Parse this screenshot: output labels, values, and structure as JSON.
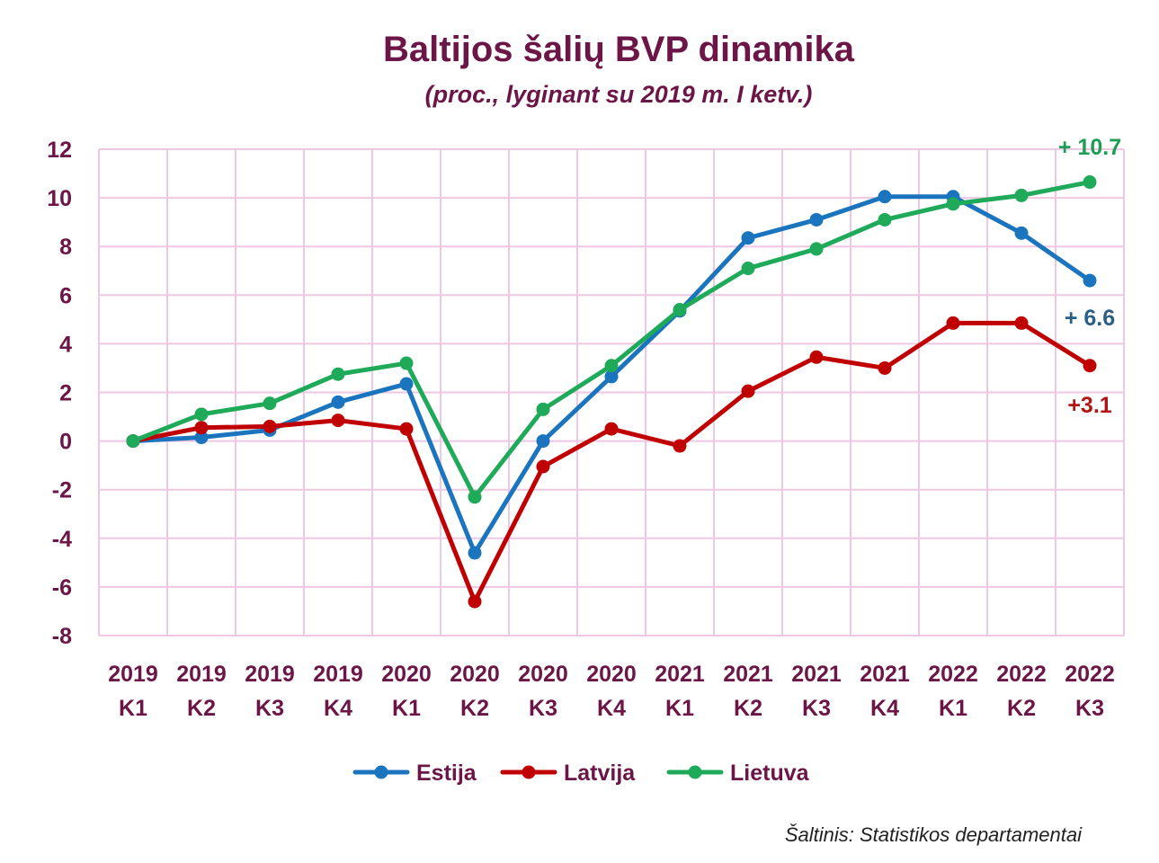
{
  "colors": {
    "text": "#6b1647",
    "grid": "#eec7e3",
    "source": "#222222"
  },
  "chart_data": {
    "type": "line",
    "title": "Baltijos šalių BVP dinamika",
    "subtitle": "(proc., lyginant su 2019 m. I ketv.)",
    "categories": [
      {
        "year": "2019",
        "q": "K1"
      },
      {
        "year": "2019",
        "q": "K2"
      },
      {
        "year": "2019",
        "q": "K3"
      },
      {
        "year": "2019",
        "q": "K4"
      },
      {
        "year": "2020",
        "q": "K1"
      },
      {
        "year": "2020",
        "q": "K2"
      },
      {
        "year": "2020",
        "q": "K3"
      },
      {
        "year": "2020",
        "q": "K4"
      },
      {
        "year": "2021",
        "q": "K1"
      },
      {
        "year": "2021",
        "q": "K2"
      },
      {
        "year": "2021",
        "q": "K3"
      },
      {
        "year": "2021",
        "q": "K4"
      },
      {
        "year": "2022",
        "q": "K1"
      },
      {
        "year": "2022",
        "q": "K2"
      },
      {
        "year": "2022",
        "q": "K3"
      }
    ],
    "ylim": [
      -8,
      12
    ],
    "yticks": [
      -8,
      -6,
      -4,
      -2,
      0,
      2,
      4,
      6,
      8,
      10,
      12
    ],
    "grid": true,
    "legend_position": "bottom",
    "series": [
      {
        "name": "Estija",
        "color": "#1b74be",
        "values": [
          0,
          0.15,
          0.45,
          1.6,
          2.35,
          -4.6,
          0.0,
          2.65,
          5.35,
          8.35,
          9.1,
          10.05,
          10.05,
          8.55,
          6.6
        ],
        "end_label": "+ 6.6"
      },
      {
        "name": "Latvija",
        "color": "#c00000",
        "values": [
          0,
          0.55,
          0.6,
          0.85,
          0.5,
          -6.6,
          -1.05,
          0.5,
          -0.2,
          2.05,
          3.45,
          3.0,
          4.85,
          4.85,
          3.1
        ],
        "end_label": "+3.1"
      },
      {
        "name": "Lietuva",
        "color": "#1faa59",
        "values": [
          0,
          1.1,
          1.55,
          2.75,
          3.2,
          -2.3,
          1.3,
          3.1,
          5.4,
          7.1,
          7.9,
          9.1,
          9.75,
          10.1,
          10.65
        ],
        "end_label": "+ 10.7"
      }
    ],
    "source": "Šaltinis: Statistikos departamentai"
  }
}
